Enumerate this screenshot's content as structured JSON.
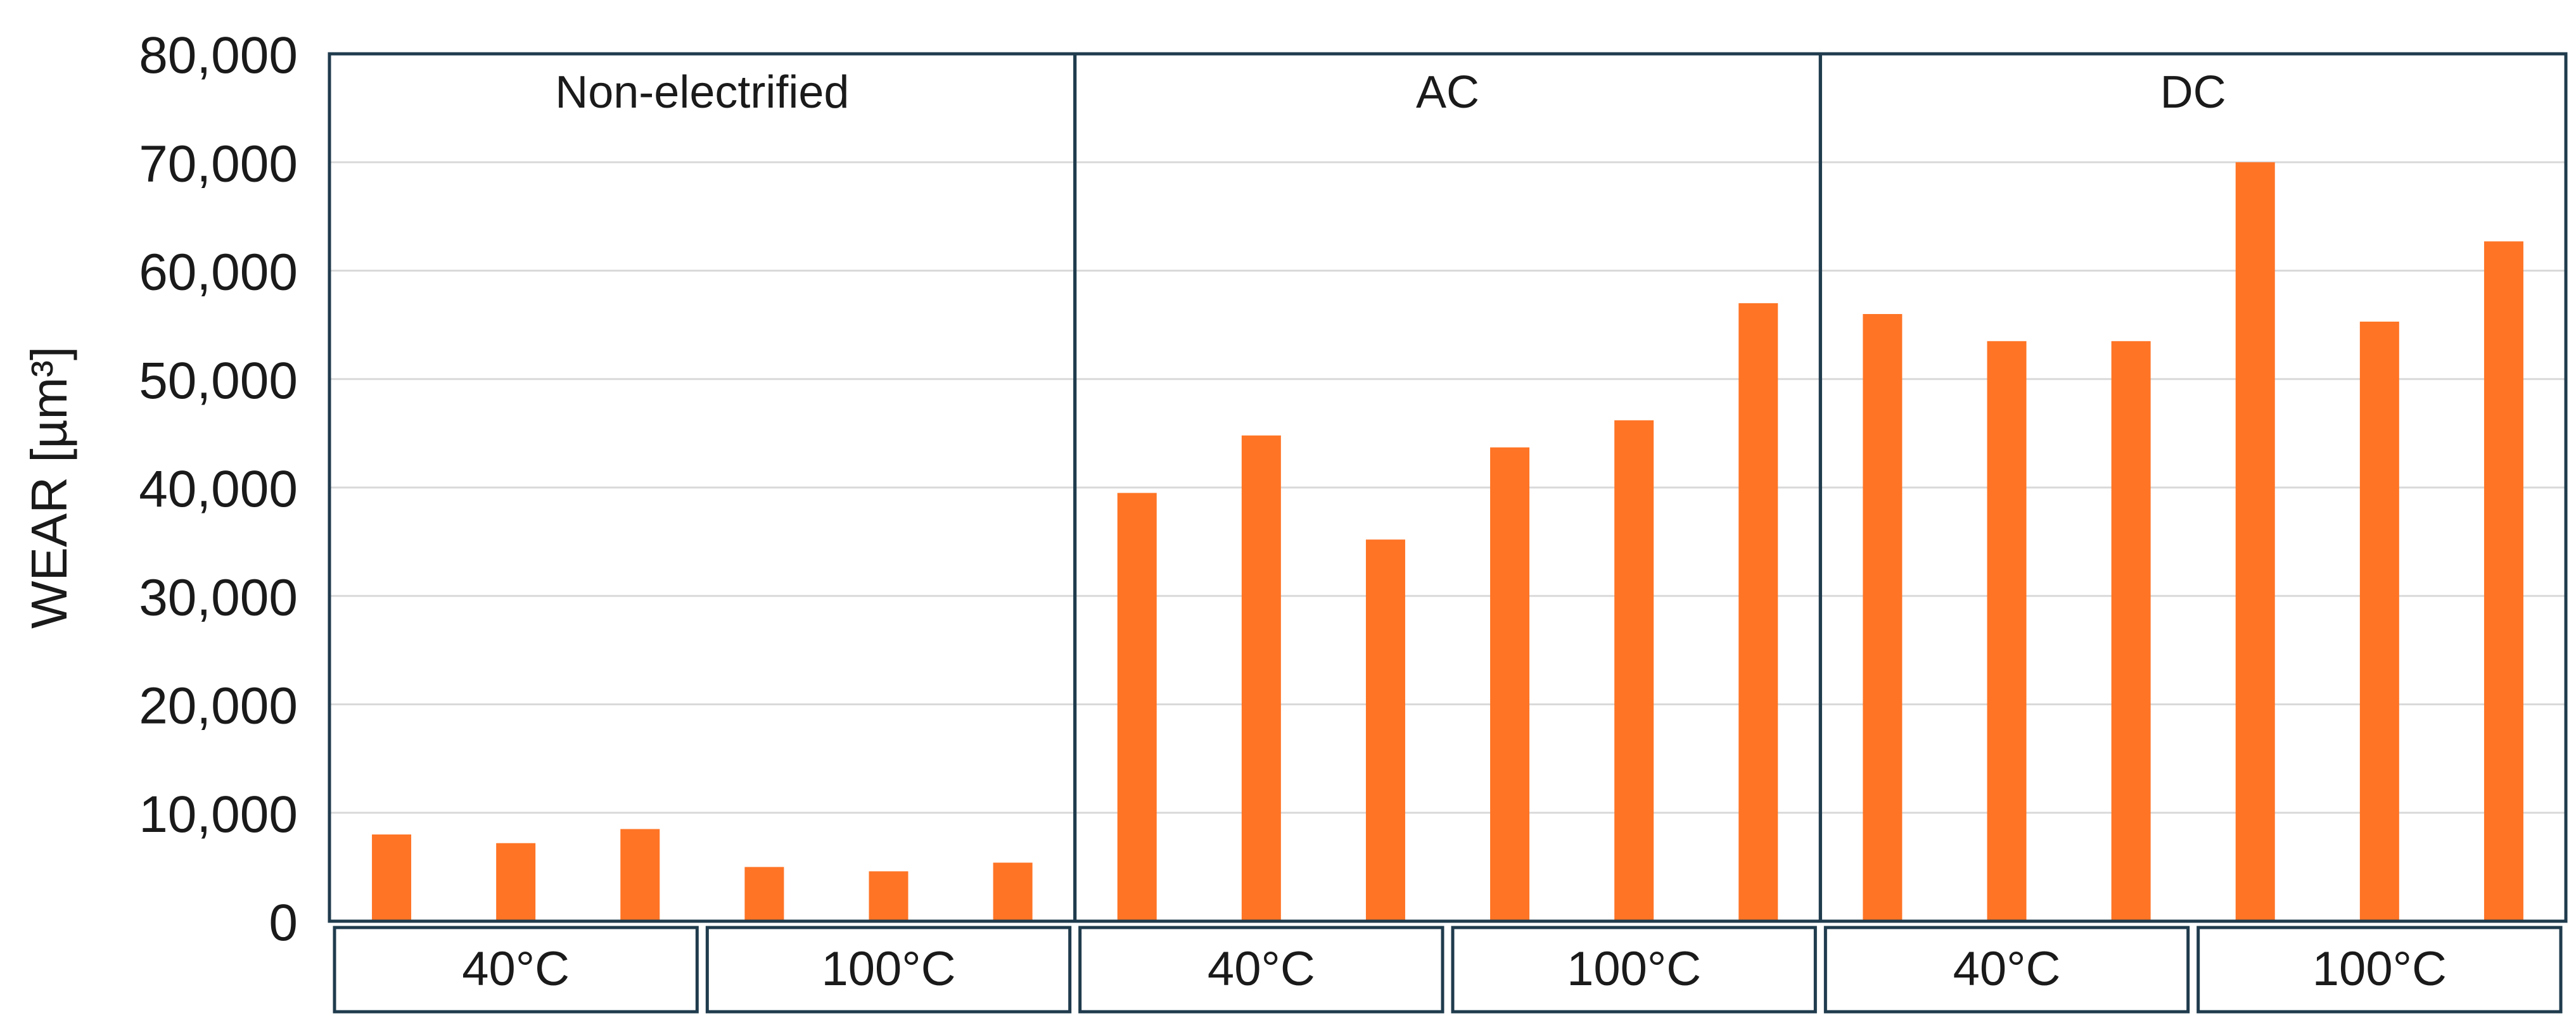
{
  "chart_data": {
    "type": "bar",
    "ylabel": "WEAR [µm³]",
    "ylim": [
      0,
      80000
    ],
    "yticks": [
      0,
      10000,
      20000,
      30000,
      40000,
      50000,
      60000,
      70000,
      80000
    ],
    "ytick_labels": [
      "0",
      "10,000",
      "20,000",
      "30,000",
      "40,000",
      "50,000",
      "60,000",
      "70,000",
      "80,000"
    ],
    "grid": "horizontal",
    "legend": "none",
    "bar_color": "#FF7425",
    "panel_border_color": "#1F3B4D",
    "groups": [
      {
        "label": "Non-electrified",
        "conditions": [
          {
            "label": "40°C",
            "values": [
              8000,
              7200,
              8500
            ]
          },
          {
            "label": "100°C",
            "values": [
              5000,
              4600,
              5400
            ]
          }
        ]
      },
      {
        "label": "AC",
        "conditions": [
          {
            "label": "40°C",
            "values": [
              39500,
              44800,
              35200
            ]
          },
          {
            "label": "100°C",
            "values": [
              43700,
              46200,
              57000
            ]
          }
        ]
      },
      {
        "label": "DC",
        "conditions": [
          {
            "label": "40°C",
            "values": [
              56000,
              53500,
              53500
            ]
          },
          {
            "label": "100°C",
            "values": [
              70000,
              55300,
              62700
            ]
          }
        ]
      }
    ]
  }
}
